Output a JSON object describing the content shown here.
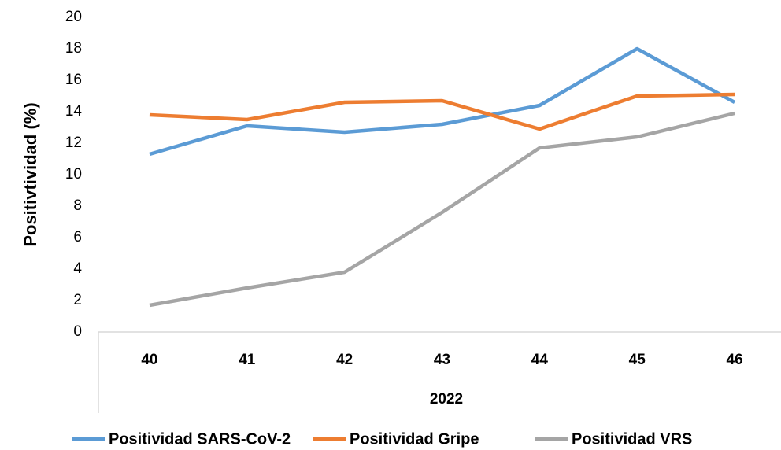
{
  "chart_data": {
    "type": "line",
    "ylabel": "Positivtividad (%)",
    "xlabel": "2022",
    "categories": [
      "40",
      "41",
      "42",
      "43",
      "44",
      "45",
      "46"
    ],
    "series": [
      {
        "name": "Positividad SARS-CoV-2",
        "color": "#5b9bd5",
        "values": [
          11.3,
          13.1,
          12.7,
          13.2,
          14.4,
          18.0,
          14.6
        ]
      },
      {
        "name": "Positividad Gripe",
        "color": "#ed7d31",
        "values": [
          13.8,
          13.5,
          14.6,
          14.7,
          12.9,
          15.0,
          15.1
        ]
      },
      {
        "name": "Positividad VRS",
        "color": "#a5a5a5",
        "values": [
          1.7,
          2.8,
          3.8,
          7.6,
          11.7,
          12.4,
          13.9
        ]
      }
    ],
    "ylim": [
      0,
      20
    ],
    "yticks": [
      0,
      2,
      4,
      6,
      8,
      10,
      12,
      14,
      16,
      18,
      20
    ],
    "legend": "bottom"
  }
}
